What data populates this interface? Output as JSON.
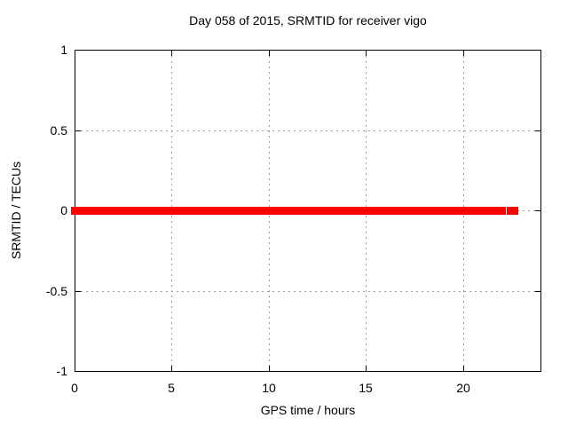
{
  "chart_data": {
    "type": "line",
    "title": "Day 058 of 2015, SRMTID for receiver vigo",
    "xlabel": "GPS time / hours",
    "ylabel": "SRMTID / TECUs",
    "xlim": [
      0,
      24
    ],
    "ylim": [
      -1,
      1
    ],
    "xticks": [
      0,
      5,
      10,
      15,
      20
    ],
    "xtick_labels": [
      "0",
      "5",
      "10",
      "15",
      "20"
    ],
    "yticks": [
      -1,
      -0.5,
      0,
      0.5,
      1
    ],
    "ytick_labels": [
      "-1",
      "-0.5",
      "0",
      "0.5",
      "1"
    ],
    "grid": true,
    "legend": "none",
    "colors": {
      "series": "#ff0000",
      "grid": "#9c9c9c",
      "border": "#000000",
      "text": "#000000",
      "background": "#ffffff"
    },
    "series": [
      {
        "name": "SRMTID",
        "color": "#ff0000",
        "style": "thick-point-band",
        "segments": [
          {
            "x_start": 0,
            "x_end": 22.05,
            "y": 0
          },
          {
            "x_start": 22.45,
            "x_end": 22.7,
            "y": 0
          }
        ]
      }
    ]
  }
}
